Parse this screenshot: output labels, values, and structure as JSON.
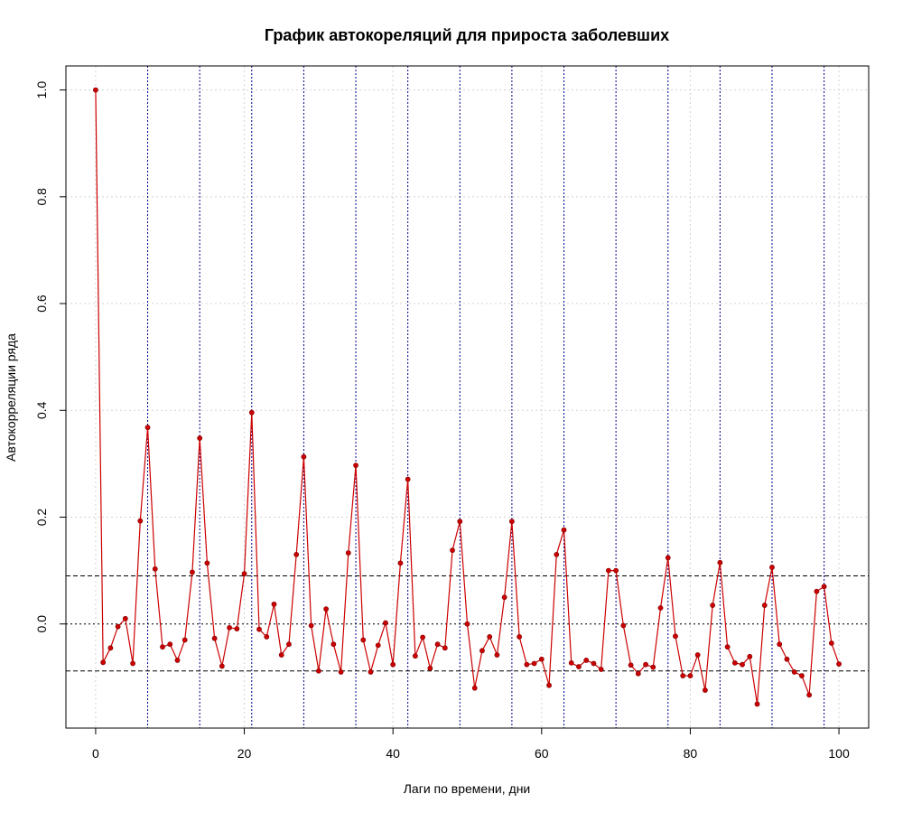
{
  "chart_data": {
    "type": "line",
    "title": "График автокореляций для прироста заболевших",
    "xlabel": "Лаги по времени, дни",
    "ylabel": "Автокорреляции ряда",
    "xlim": [
      -4,
      104
    ],
    "ylim": [
      -0.195,
      1.045
    ],
    "x_ticks": [
      0,
      20,
      40,
      60,
      80,
      100
    ],
    "y_ticks": [
      0.0,
      0.2,
      0.4,
      0.6,
      0.8,
      1.0
    ],
    "x_tick_labels": [
      "0",
      "20",
      "40",
      "60",
      "80",
      "100"
    ],
    "y_tick_labels": [
      "0.0",
      "0.2",
      "0.4",
      "0.6",
      "0.8",
      "1.0"
    ],
    "grid": true,
    "weekly_lines": [
      7,
      14,
      21,
      28,
      35,
      42,
      49,
      56,
      63,
      70,
      77,
      84,
      91,
      98
    ],
    "confidence_band": [
      -0.088,
      0.09
    ],
    "zero_line": 0.0,
    "colors": {
      "series": "#cc0000",
      "grid": "#d3d3d3",
      "weekly_lines": "#00008b",
      "reference_lines": "#000000"
    },
    "series": [
      {
        "x": [
          0,
          1,
          2,
          3,
          4,
          5,
          6,
          7,
          8,
          9,
          10,
          11,
          12,
          13,
          14,
          15,
          16,
          17,
          18,
          19,
          20,
          21,
          22,
          23,
          24,
          25,
          26,
          27,
          28,
          29,
          30,
          31,
          32,
          33,
          34,
          35,
          36,
          37,
          38,
          39,
          40,
          41,
          42,
          43,
          44,
          45,
          46,
          47,
          48,
          49,
          50,
          51,
          52,
          53,
          54,
          55,
          56,
          57,
          58,
          59,
          60,
          61,
          62,
          63,
          64,
          65,
          66,
          67,
          68,
          69,
          70,
          71,
          72,
          73,
          74,
          75,
          76,
          77,
          78,
          79,
          80,
          81,
          82,
          83,
          84,
          85,
          86,
          87,
          88,
          89,
          90,
          91,
          92,
          93,
          94,
          95,
          96,
          97,
          98,
          99,
          100
        ],
        "values": [
          1.0,
          -0.072,
          -0.045,
          -0.005,
          0.01,
          -0.074,
          0.193,
          0.368,
          0.103,
          -0.043,
          -0.038,
          -0.068,
          -0.03,
          0.097,
          0.348,
          0.114,
          -0.027,
          -0.079,
          -0.007,
          -0.009,
          0.094,
          0.396,
          -0.01,
          -0.024,
          0.037,
          -0.058,
          -0.038,
          0.13,
          0.313,
          -0.003,
          -0.088,
          0.028,
          -0.038,
          -0.09,
          0.133,
          0.297,
          -0.03,
          -0.09,
          -0.04,
          0.002,
          -0.076,
          0.114,
          0.271,
          -0.06,
          -0.025,
          -0.083,
          -0.038,
          -0.045,
          0.138,
          0.192,
          0.0,
          -0.12,
          -0.05,
          -0.024,
          -0.058,
          0.05,
          0.192,
          -0.024,
          -0.076,
          -0.074,
          -0.066,
          -0.115,
          0.13,
          0.176,
          -0.073,
          -0.08,
          -0.068,
          -0.074,
          -0.085,
          0.1,
          0.1,
          -0.003,
          -0.077,
          -0.093,
          -0.076,
          -0.081,
          0.03,
          0.124,
          -0.023,
          -0.097,
          -0.097,
          -0.058,
          -0.124,
          0.035,
          0.115,
          -0.043,
          -0.073,
          -0.076,
          -0.061,
          -0.15,
          0.035,
          0.106,
          -0.038,
          -0.066,
          -0.09,
          -0.097,
          -0.133,
          0.061,
          0.07,
          -0.036,
          -0.075
        ]
      }
    ]
  }
}
